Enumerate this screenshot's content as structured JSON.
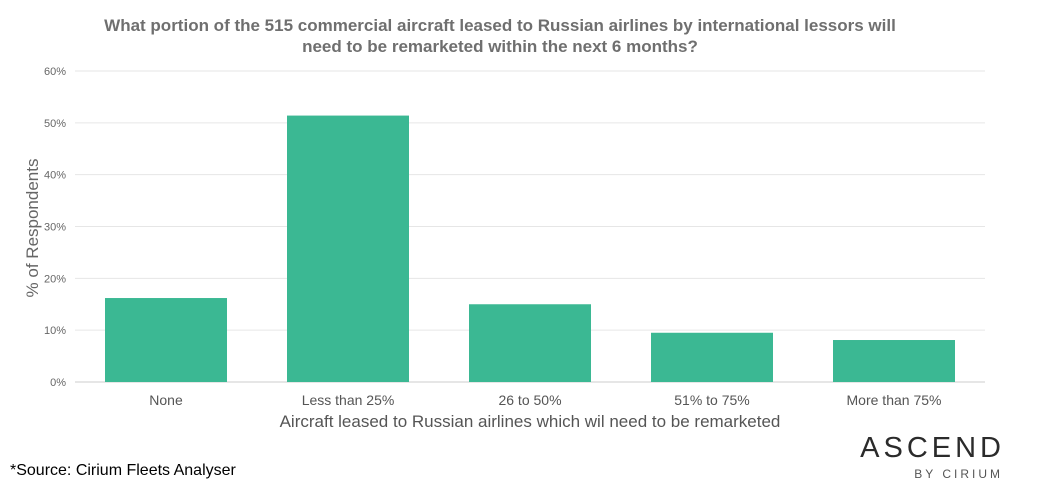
{
  "chart_data": {
    "type": "bar",
    "title_lines": [
      "What portion of the 515 commercial aircraft leased to Russian airlines by international lessors will",
      "need to be remarketed within the next 6 months?"
    ],
    "categories": [
      "None",
      "Less than 25%",
      "26 to 50%",
      "51% to 75%",
      "More than 75%"
    ],
    "values": [
      16.2,
      51.4,
      15.0,
      9.5,
      8.1
    ],
    "xlabel": "Aircraft leased to Russian airlines which wil need to be remarketed",
    "ylabel": "% of Respondents",
    "ylim": [
      0,
      60
    ],
    "yticks": [
      "0%",
      "10%",
      "20%",
      "30%",
      "40%",
      "50%",
      "60%"
    ],
    "grid": true,
    "bar_color": "#3bb893"
  },
  "footer": {
    "source": "*Source: Cirium Fleets Analyser",
    "logo_main": "ASCEND",
    "logo_sub": "BY CIRIUM"
  }
}
